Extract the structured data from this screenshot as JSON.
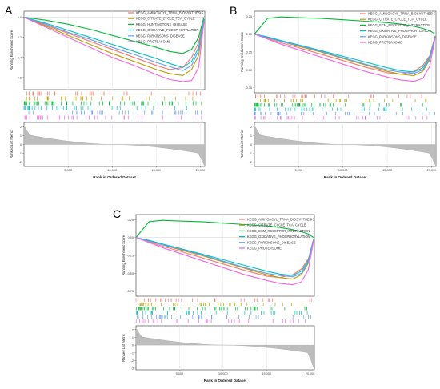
{
  "figure": {
    "panels": [
      {
        "letter": "A",
        "ylabel": "Running Enrichment Score",
        "ylabel_bottom": "Ranked List Metric",
        "xlabel": "Rank in Ordered Dataset",
        "legend": [
          {
            "name": "KEGG_AMINOACYL_TRNA_BIOSYNTHESIS",
            "color": "#f8766d"
          },
          {
            "name": "KEGG_CITRATE_CYCLE_TCA_CYCLE",
            "color": "#b79f00"
          },
          {
            "name": "KEGG_HUNTINGTONS_DISEASE",
            "color": "#00ba38"
          },
          {
            "name": "KEGG_OXIDATIVE_PHOSPHORYLATION",
            "color": "#00bfc4"
          },
          {
            "name": "KEGG_PARKINSONS_DISEASE",
            "color": "#619cff"
          },
          {
            "name": "KEGG_PROTEASOME",
            "color": "#f564e3"
          }
        ],
        "es_yticks": [
          "0.0",
          "-0.2",
          "-0.4",
          "-0.6"
        ],
        "metric_yticks": [
          "2",
          "1",
          "0",
          "-1",
          "-2"
        ],
        "xticks": [
          "5,000",
          "10,000",
          "15,000",
          "20,000"
        ]
      },
      {
        "letter": "B",
        "ylabel": "Running Enrichment Score",
        "ylabel_bottom": "Ranked List Metric",
        "xlabel": "Rank in Ordered Dataset",
        "legend": [
          {
            "name": "KEGG_AMINOACYL_TRNA_BIOSYNTHESIS",
            "color": "#f8766d"
          },
          {
            "name": "KEGG_CITRATE_CYCLE_TCA_CYCLE",
            "color": "#b79f00"
          },
          {
            "name": "KEGG_ECM_RECEPTOR_INTERACTION",
            "color": "#00ba38"
          },
          {
            "name": "KEGG_OXIDATIVE_PHOSPHORYLATION",
            "color": "#00bfc4"
          },
          {
            "name": "KEGG_PARKINSONS_DISEASE",
            "color": "#619cff"
          },
          {
            "name": "KEGG_PROTEASOME",
            "color": "#f564e3"
          }
        ],
        "es_yticks": [
          "0.25",
          "0.00",
          "-0.25",
          "-0.50",
          "-0.75"
        ],
        "metric_yticks": [
          "2",
          "1",
          "0",
          "-1",
          "-2"
        ],
        "xticks": [
          "5,000",
          "10,000",
          "15,000",
          "20,000"
        ]
      },
      {
        "letter": "C",
        "ylabel": "Running Enrichment Score",
        "ylabel_bottom": "Ranked List Metric",
        "xlabel": "Rank in Ordered Dataset",
        "legend": [
          {
            "name": "KEGG_AMINOACYL_TRNA_BIOSYNTHESIS",
            "color": "#f8766d"
          },
          {
            "name": "KEGG_CITRATE_CYCLE_TCA_CYCLE",
            "color": "#b79f00"
          },
          {
            "name": "KEGG_ECM_RECEPTOR_INTERACTION",
            "color": "#00ba38"
          },
          {
            "name": "KEGG_OXIDATIVE_PHOSPHORYLATION",
            "color": "#00bfc4"
          },
          {
            "name": "KEGG_PARKINSONS_DISEASE",
            "color": "#619cff"
          },
          {
            "name": "KEGG_PROTEASOME",
            "color": "#f564e3"
          }
        ],
        "es_yticks": [
          "0.25",
          "0.00",
          "-0.25",
          "-0.50",
          "-0.75"
        ],
        "metric_yticks": [
          "2",
          "1",
          "0",
          "-1",
          "-2",
          "-3"
        ],
        "xticks": [
          "5,000",
          "10,000",
          "15,000",
          "20,000"
        ]
      }
    ]
  },
  "chart_data": [
    {
      "type": "line",
      "panel": "A",
      "xlabel": "Rank in Ordered Dataset",
      "ylabel": "Running Enrichment Score",
      "xlim": [
        0,
        20500
      ],
      "ylim": [
        -0.72,
        0.06
      ],
      "x": [
        0,
        2500,
        5000,
        7500,
        10000,
        12500,
        15000,
        16500,
        18000,
        19000,
        19800,
        20400
      ],
      "series": [
        {
          "name": "KEGG_AMINOACYL_TRNA_BIOSYNTHESIS",
          "color": "#f8766d",
          "values": [
            0,
            -0.08,
            -0.16,
            -0.24,
            -0.32,
            -0.4,
            -0.48,
            -0.52,
            -0.5,
            -0.4,
            -0.25,
            -0.02
          ]
        },
        {
          "name": "KEGG_CITRATE_CYCLE_TCA_CYCLE",
          "color": "#b79f00",
          "values": [
            0,
            -0.09,
            -0.18,
            -0.27,
            -0.36,
            -0.44,
            -0.52,
            -0.56,
            -0.58,
            -0.52,
            -0.38,
            -0.04
          ]
        },
        {
          "name": "KEGG_HUNTINGTONS_DISEASE",
          "color": "#00ba38",
          "values": [
            0,
            -0.03,
            -0.07,
            -0.12,
            -0.18,
            -0.24,
            -0.3,
            -0.34,
            -0.36,
            -0.32,
            -0.2,
            0
          ]
        },
        {
          "name": "KEGG_OXIDATIVE_PHOSPHORYLATION",
          "color": "#00bfc4",
          "values": [
            0,
            -0.06,
            -0.13,
            -0.2,
            -0.27,
            -0.34,
            -0.41,
            -0.46,
            -0.5,
            -0.44,
            -0.3,
            -0.02
          ]
        },
        {
          "name": "KEGG_PARKINSONS_DISEASE",
          "color": "#619cff",
          "values": [
            0,
            -0.07,
            -0.15,
            -0.22,
            -0.3,
            -0.37,
            -0.45,
            -0.49,
            -0.53,
            -0.48,
            -0.33,
            -0.03
          ]
        },
        {
          "name": "KEGG_PROTEASOME",
          "color": "#f564e3",
          "values": [
            0,
            -0.1,
            -0.2,
            -0.3,
            -0.4,
            -0.48,
            -0.57,
            -0.62,
            -0.64,
            -0.63,
            -0.5,
            -0.05
          ]
        }
      ],
      "metric": {
        "ylabel": "Ranked List Metric",
        "ylim": [
          -2.5,
          2.5
        ]
      }
    },
    {
      "type": "line",
      "panel": "B",
      "xlabel": "Rank in Ordered Dataset",
      "ylabel": "Running Enrichment Score",
      "xlim": [
        0,
        20500
      ],
      "ylim": [
        -0.82,
        0.32
      ],
      "x": [
        0,
        1500,
        3000,
        5000,
        7500,
        10000,
        12500,
        15000,
        16500,
        18000,
        19000,
        19800,
        20400
      ],
      "series": [
        {
          "name": "KEGG_AMINOACYL_TRNA_BIOSYNTHESIS",
          "color": "#f8766d",
          "values": [
            0,
            -0.06,
            -0.12,
            -0.19,
            -0.28,
            -0.37,
            -0.46,
            -0.54,
            -0.56,
            -0.52,
            -0.44,
            -0.3,
            -0.03
          ]
        },
        {
          "name": "KEGG_CITRATE_CYCLE_TCA_CYCLE",
          "color": "#b79f00",
          "values": [
            0,
            -0.05,
            -0.1,
            -0.17,
            -0.25,
            -0.34,
            -0.43,
            -0.52,
            -0.56,
            -0.58,
            -0.52,
            -0.36,
            -0.04
          ]
        },
        {
          "name": "KEGG_ECM_RECEPTOR_INTERACTION",
          "color": "#00ba38",
          "values": [
            0,
            0.22,
            0.24,
            0.23,
            0.22,
            0.2,
            0.18,
            0.16,
            0.14,
            0.11,
            0.08,
            0.05,
            0
          ]
        },
        {
          "name": "KEGG_OXIDATIVE_PHOSPHORYLATION",
          "color": "#00bfc4",
          "values": [
            0,
            -0.04,
            -0.09,
            -0.15,
            -0.23,
            -0.31,
            -0.39,
            -0.47,
            -0.51,
            -0.53,
            -0.47,
            -0.32,
            -0.03
          ]
        },
        {
          "name": "KEGG_PARKINSONS_DISEASE",
          "color": "#619cff",
          "values": [
            0,
            -0.05,
            -0.1,
            -0.16,
            -0.24,
            -0.33,
            -0.42,
            -0.5,
            -0.53,
            -0.55,
            -0.5,
            -0.34,
            -0.03
          ]
        },
        {
          "name": "KEGG_PROTEASOME",
          "color": "#f564e3",
          "values": [
            0,
            -0.07,
            -0.14,
            -0.22,
            -0.32,
            -0.42,
            -0.52,
            -0.6,
            -0.64,
            -0.66,
            -0.62,
            -0.45,
            -0.05
          ]
        }
      ],
      "metric": {
        "ylabel": "Ranked List Metric",
        "ylim": [
          -2.5,
          2.5
        ]
      }
    },
    {
      "type": "line",
      "panel": "C",
      "xlabel": "Rank in Ordered Dataset",
      "ylabel": "Running Enrichment Score",
      "xlim": [
        0,
        20500
      ],
      "ylim": [
        -0.82,
        0.32
      ],
      "x": [
        0,
        1500,
        3000,
        5000,
        7500,
        10000,
        12500,
        15000,
        16500,
        18000,
        19000,
        19800,
        20400
      ],
      "series": [
        {
          "name": "KEGG_AMINOACYL_TRNA_BIOSYNTHESIS",
          "color": "#f8766d",
          "values": [
            0,
            -0.06,
            -0.12,
            -0.19,
            -0.28,
            -0.37,
            -0.46,
            -0.54,
            -0.56,
            -0.52,
            -0.44,
            -0.3,
            -0.03
          ]
        },
        {
          "name": "KEGG_CITRATE_CYCLE_TCA_CYCLE",
          "color": "#b79f00",
          "values": [
            0,
            -0.05,
            -0.1,
            -0.17,
            -0.25,
            -0.34,
            -0.43,
            -0.52,
            -0.56,
            -0.58,
            -0.52,
            -0.36,
            -0.04
          ]
        },
        {
          "name": "KEGG_ECM_RECEPTOR_INTERACTION",
          "color": "#00ba38",
          "values": [
            0,
            0.22,
            0.24,
            0.23,
            0.22,
            0.2,
            0.18,
            0.16,
            0.14,
            0.11,
            0.08,
            0.05,
            0
          ]
        },
        {
          "name": "KEGG_OXIDATIVE_PHOSPHORYLATION",
          "color": "#00bfc4",
          "values": [
            0,
            -0.04,
            -0.09,
            -0.15,
            -0.23,
            -0.31,
            -0.39,
            -0.47,
            -0.51,
            -0.53,
            -0.47,
            -0.32,
            -0.03
          ]
        },
        {
          "name": "KEGG_PARKINSONS_DISEASE",
          "color": "#619cff",
          "values": [
            0,
            -0.05,
            -0.1,
            -0.16,
            -0.24,
            -0.33,
            -0.42,
            -0.5,
            -0.53,
            -0.55,
            -0.5,
            -0.34,
            -0.03
          ]
        },
        {
          "name": "KEGG_PROTEASOME",
          "color": "#f564e3",
          "values": [
            0,
            -0.07,
            -0.14,
            -0.22,
            -0.32,
            -0.42,
            -0.52,
            -0.6,
            -0.64,
            -0.66,
            -0.62,
            -0.45,
            -0.05
          ]
        }
      ],
      "metric": {
        "ylabel": "Ranked List Metric",
        "ylim": [
          -3.2,
          2.5
        ]
      }
    }
  ]
}
